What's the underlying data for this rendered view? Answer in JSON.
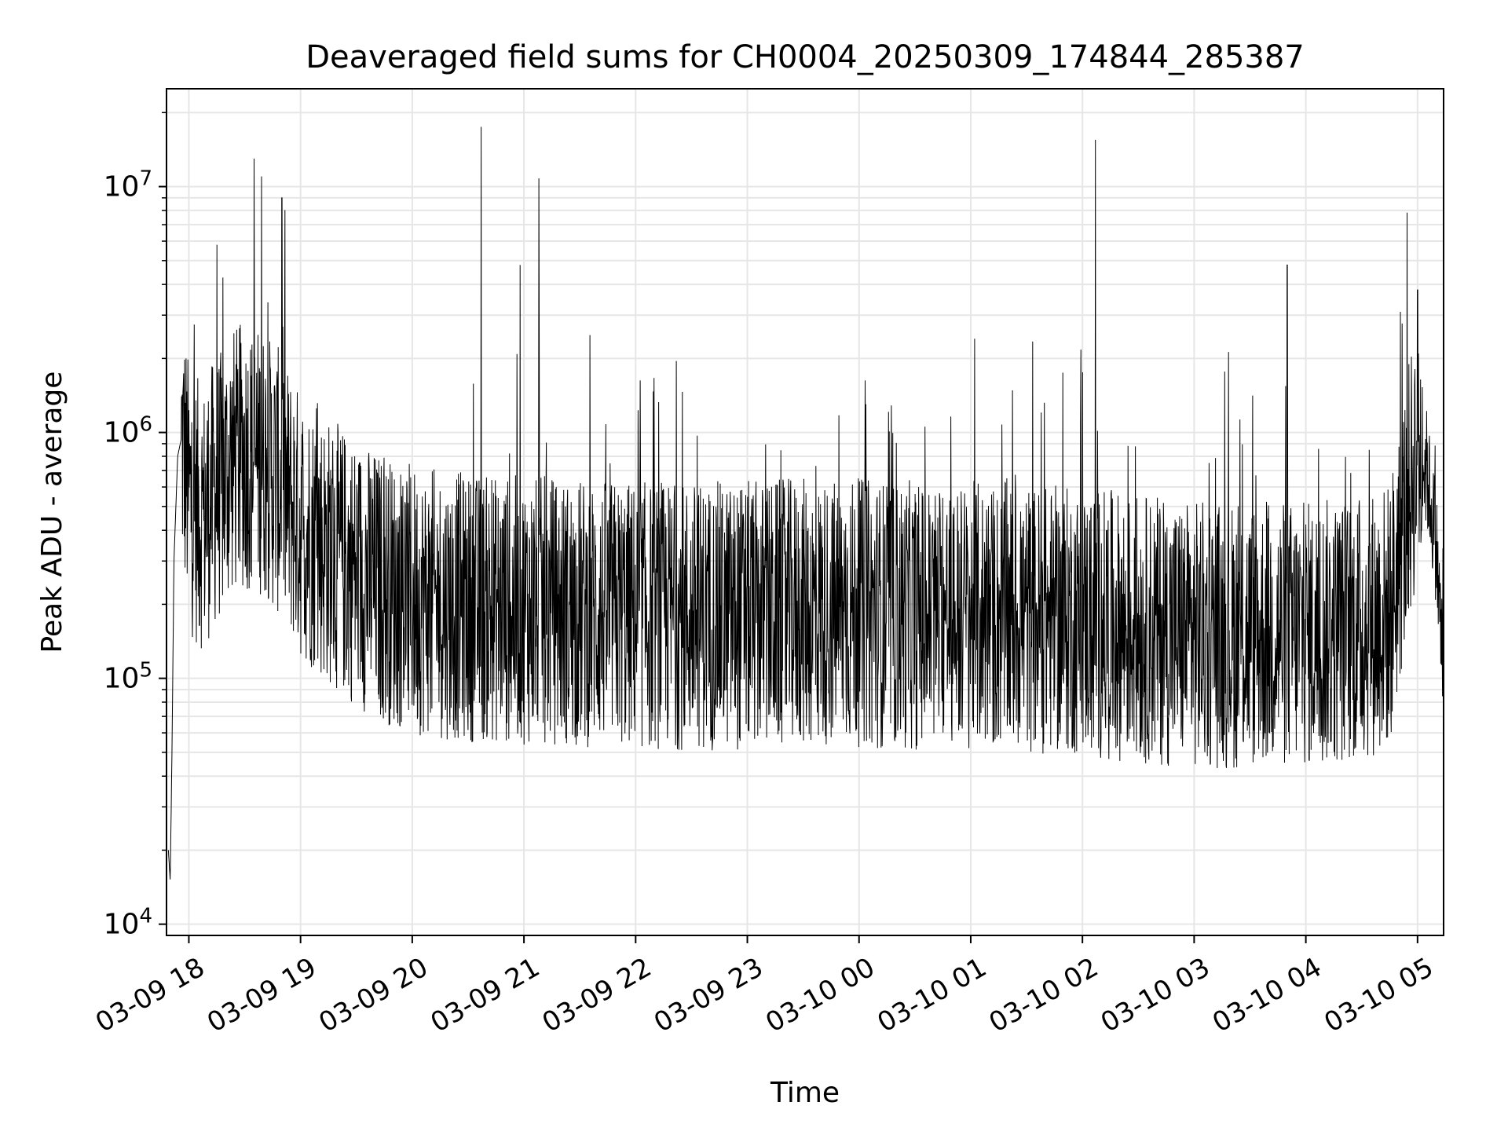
{
  "chart_data": {
    "type": "line",
    "title": "Deaveraged field sums for CH0004_20250309_174844_285387",
    "xlabel": "Time",
    "ylabel": "Peak ADU - average",
    "yscale": "log",
    "ylim": [
      9000,
      25000000
    ],
    "xlim": [
      "2025-03-09 17:48",
      "2025-03-10 05:14"
    ],
    "x_tick_labels": [
      "03-09 18",
      "03-09 19",
      "03-09 20",
      "03-09 21",
      "03-09 22",
      "03-09 23",
      "03-10 00",
      "03-10 01",
      "03-10 02",
      "03-10 03",
      "03-10 04",
      "03-10 05"
    ],
    "y_tick_labels": [
      {
        "base": "10",
        "exp": "4",
        "value": 10000
      },
      {
        "base": "10",
        "exp": "5",
        "value": 100000
      },
      {
        "base": "10",
        "exp": "6",
        "value": 1000000
      },
      {
        "base": "10",
        "exp": "7",
        "value": 10000000
      }
    ],
    "grid": true,
    "line_color": "#000000",
    "series": [
      {
        "x": [
          "2025-03-09 17:49",
          "2025-03-09 17:50",
          "2025-03-09 17:51",
          "2025-03-09 17:52",
          "2025-03-09 17:54",
          "2025-03-09 17:56",
          "2025-03-09 17:58",
          "2025-03-09 18:00",
          "2025-03-09 18:04",
          "2025-03-09 18:08",
          "2025-03-09 18:13",
          "2025-03-09 18:18",
          "2025-03-09 18:23",
          "2025-03-09 18:30",
          "2025-03-09 18:40",
          "2025-03-09 18:50",
          "2025-03-09 19:00",
          "2025-03-09 19:15",
          "2025-03-09 19:30",
          "2025-03-09 19:45",
          "2025-03-09 20:00",
          "2025-03-09 20:15",
          "2025-03-09 20:30",
          "2025-03-09 20:45",
          "2025-03-09 21:00",
          "2025-03-09 21:30",
          "2025-03-09 22:00",
          "2025-03-09 22:30",
          "2025-03-09 23:00",
          "2025-03-09 23:30",
          "2025-03-10 00:00",
          "2025-03-10 00:30",
          "2025-03-10 01:00",
          "2025-03-10 01:30",
          "2025-03-10 02:00",
          "2025-03-10 02:30",
          "2025-03-10 03:00",
          "2025-03-10 03:30",
          "2025-03-10 04:00",
          "2025-03-10 04:30",
          "2025-03-10 04:45",
          "2025-03-10 05:00",
          "2025-03-10 05:05",
          "2025-03-10 05:10",
          "2025-03-10 05:14"
        ],
        "y": [
          20000,
          15000,
          55000,
          300000,
          800000,
          950000,
          750000,
          550000,
          480000,
          450000,
          560000,
          620000,
          760000,
          800000,
          760000,
          600000,
          420000,
          330000,
          270000,
          230000,
          210000,
          200000,
          195000,
          190000,
          190000,
          185000,
          180000,
          180000,
          180000,
          185000,
          185000,
          180000,
          180000,
          175000,
          170000,
          160000,
          150000,
          150000,
          150000,
          160000,
          180000,
          900000,
          700000,
          350000,
          100000
        ]
      }
    ],
    "spikes": [
      {
        "x": "2025-03-09 18:15",
        "y": 5800000
      },
      {
        "x": "2025-03-09 18:35",
        "y": 13000000
      },
      {
        "x": "2025-03-09 18:39",
        "y": 11000000
      },
      {
        "x": "2025-03-09 18:50",
        "y": 9000000
      },
      {
        "x": "2025-03-09 20:37",
        "y": 17500000
      },
      {
        "x": "2025-03-09 21:08",
        "y": 10800000
      },
      {
        "x": "2025-03-09 20:58",
        "y": 4800000
      },
      {
        "x": "2025-03-10 02:07",
        "y": 15500000
      },
      {
        "x": "2025-03-10 03:50",
        "y": 4800000
      },
      {
        "x": "2025-03-10 05:00",
        "y": 3800000
      }
    ]
  }
}
